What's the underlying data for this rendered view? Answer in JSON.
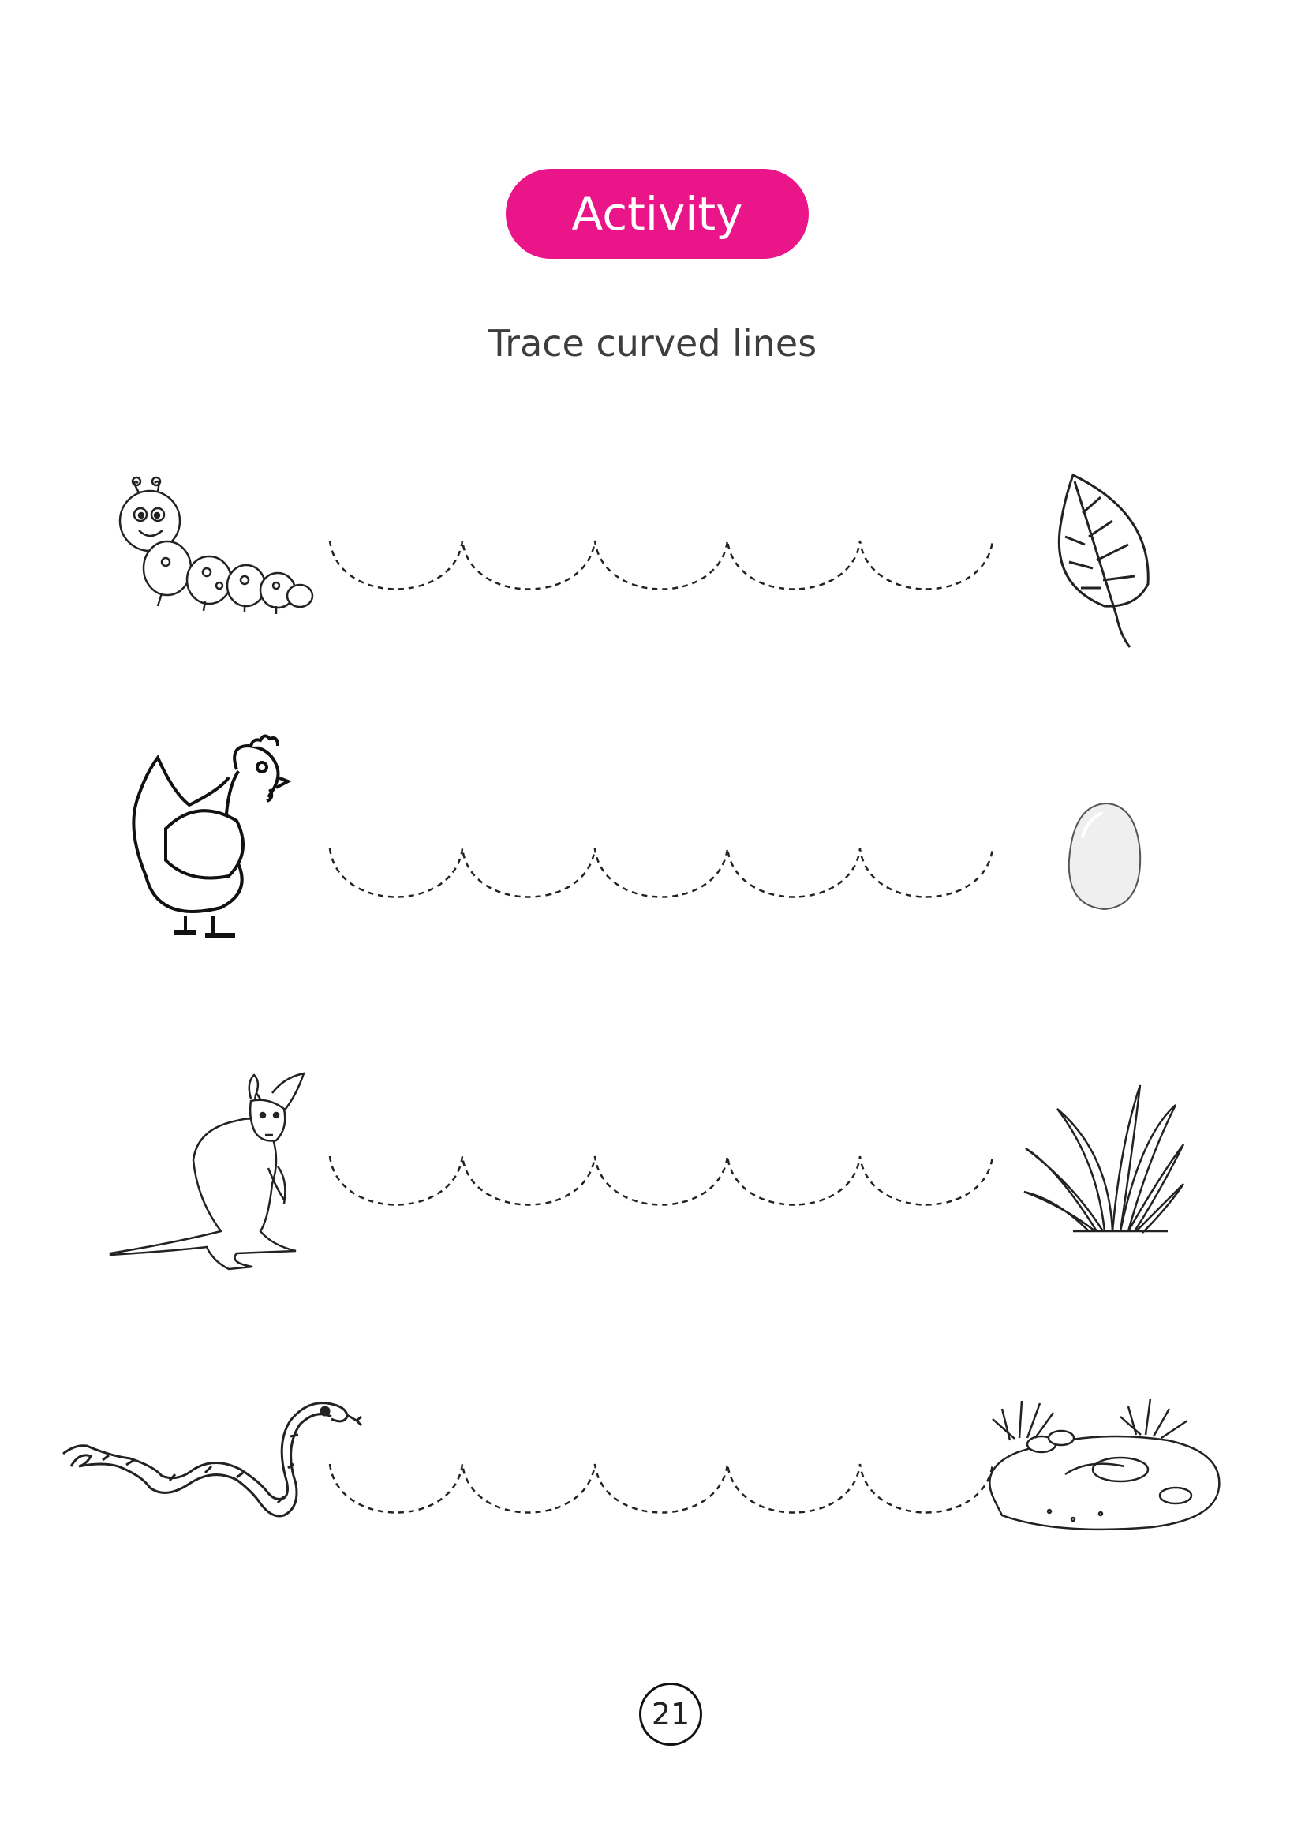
{
  "header": {
    "badge_label": "Activity",
    "badge_color": "#ea1689"
  },
  "instruction": "Trace curved lines",
  "rows": [
    {
      "start_icon": "caterpillar-icon",
      "end_icon": "leaf-icon",
      "scallops": 5
    },
    {
      "start_icon": "hen-icon",
      "end_icon": "egg-icon",
      "scallops": 5
    },
    {
      "start_icon": "kangaroo-icon",
      "end_icon": "grass-icon",
      "scallops": 5
    },
    {
      "start_icon": "snake-icon",
      "end_icon": "burrow-icon",
      "scallops": 5
    }
  ],
  "footer": {
    "page_number": "21"
  }
}
